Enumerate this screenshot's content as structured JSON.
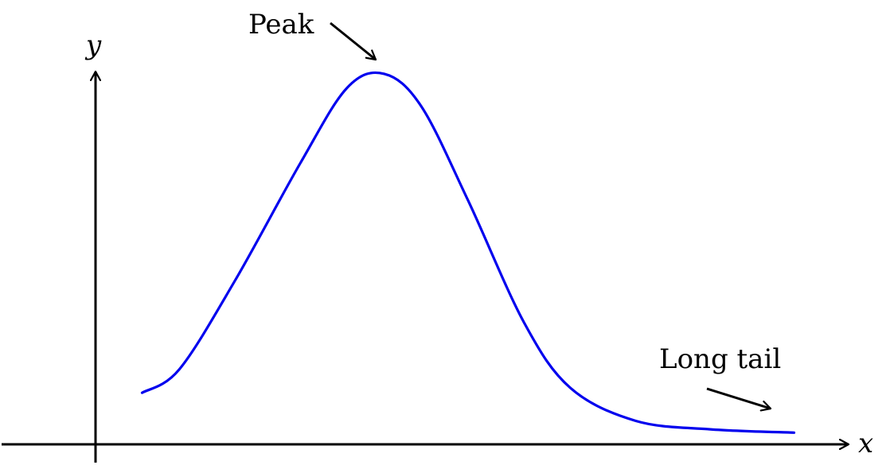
{
  "diagram": {
    "axes": {
      "x_label": "x",
      "y_label": "y"
    },
    "curve": {
      "description_shape": "skewed bell curve with long right tail",
      "color": "#0000ee",
      "points": [
        [
          0.5,
          1.1
        ],
        [
          0.9,
          1.6
        ],
        [
          1.5,
          3.5
        ],
        [
          2.2,
          6.0
        ],
        [
          2.7,
          7.6
        ],
        [
          3.1,
          7.9
        ],
        [
          3.5,
          7.2
        ],
        [
          4.0,
          5.2
        ],
        [
          4.6,
          2.6
        ],
        [
          5.1,
          1.2
        ],
        [
          5.8,
          0.5
        ],
        [
          6.6,
          0.32
        ],
        [
          7.5,
          0.25
        ]
      ],
      "x_range": [
        -1,
        8
      ],
      "y_range": [
        -0.3,
        9
      ]
    },
    "annotations": {
      "peak_label": "Peak",
      "tail_label": "Long tail"
    },
    "colors": {
      "axis": "#000000",
      "arrow": "#000000"
    }
  }
}
